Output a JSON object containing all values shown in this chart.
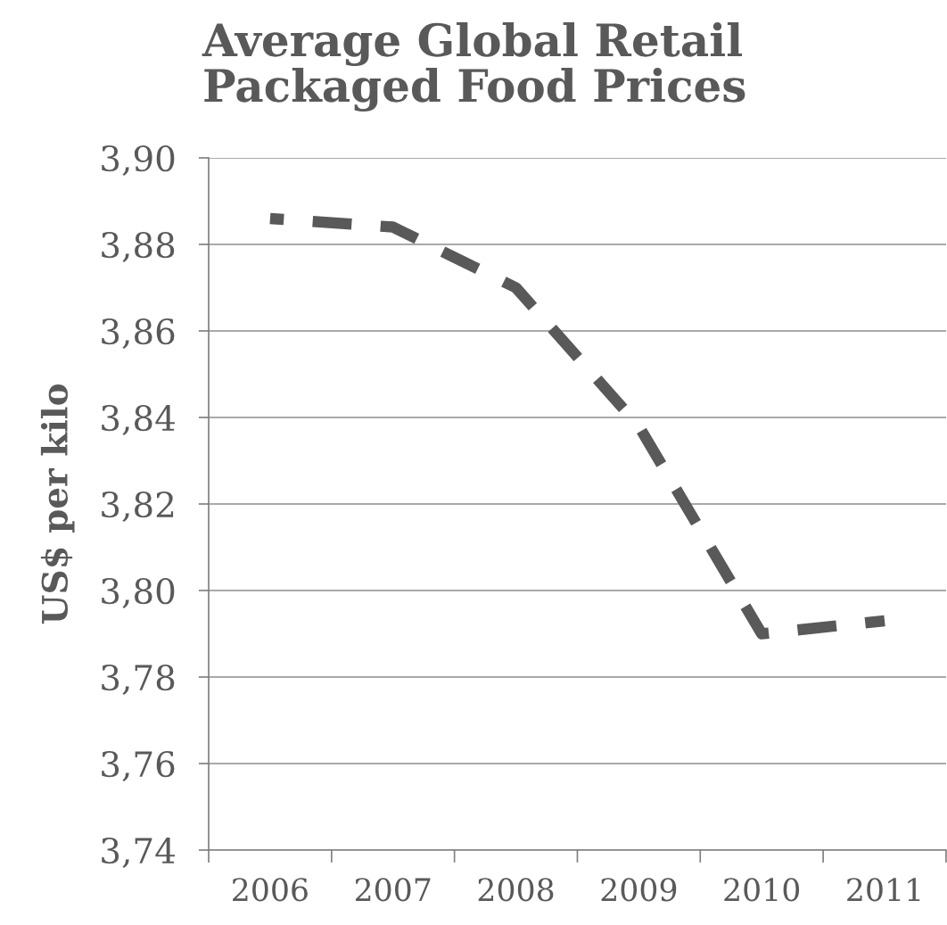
{
  "chart_data": {
    "type": "line",
    "title": "Average Global Retail\nPackaged Food Prices",
    "ylabel": "US$ per kilo",
    "categories": [
      "2006",
      "2007",
      "2008",
      "2009",
      "2010",
      "2011"
    ],
    "series": [
      {
        "color": "#595959",
        "values": [
          3.886,
          3.884,
          3.87,
          3.838,
          3.79,
          3.793
        ]
      }
    ],
    "ylim": [
      3.74,
      3.9
    ],
    "yticks": [
      {
        "value": 3.74,
        "label": "3,74"
      },
      {
        "value": 3.76,
        "label": "3,76"
      },
      {
        "value": 3.78,
        "label": "3,78"
      },
      {
        "value": 3.8,
        "label": "3,80"
      },
      {
        "value": 3.82,
        "label": "3,82"
      },
      {
        "value": 3.84,
        "label": "3,84"
      },
      {
        "value": 3.86,
        "label": "3,86"
      },
      {
        "value": 3.88,
        "label": "3,88"
      },
      {
        "value": 3.9,
        "label": "3,90"
      }
    ],
    "grid": "y",
    "line_style": "dashed",
    "marker": "none",
    "legend": false
  }
}
